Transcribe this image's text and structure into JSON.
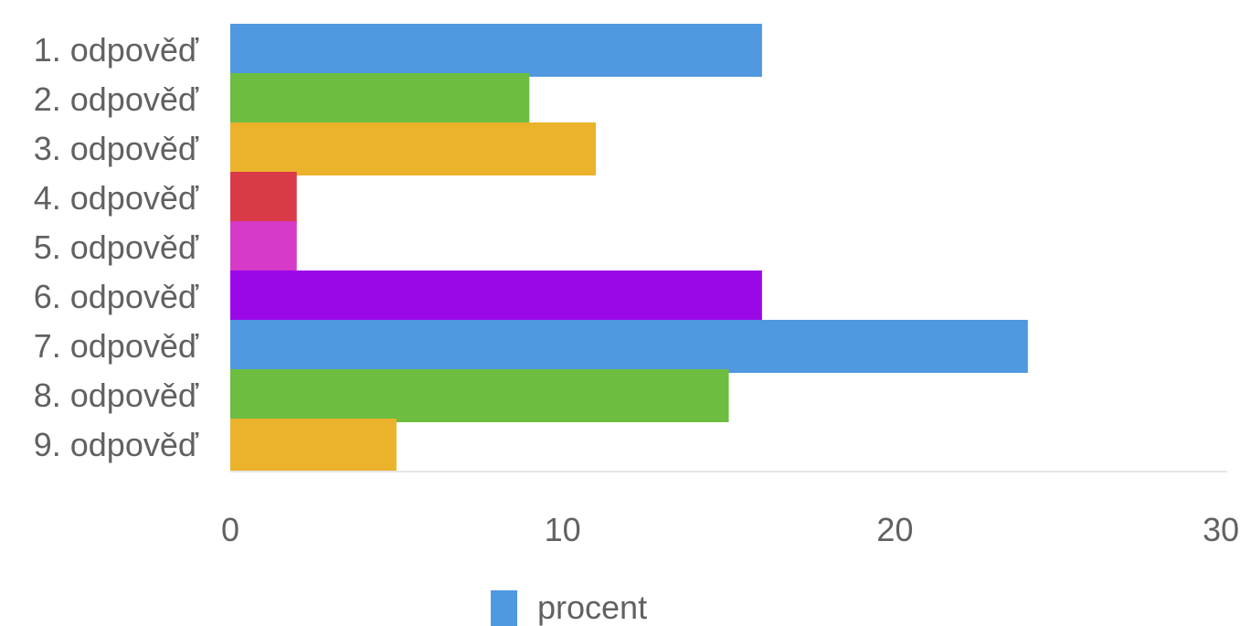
{
  "chart_data": {
    "type": "bar",
    "orientation": "horizontal",
    "categories": [
      "1. odpověď",
      "2. odpověď",
      "3. odpověď",
      "4. odpověď",
      "5. odpověď",
      "6. odpověď",
      "7. odpověď",
      "8. odpověď",
      "9. odpověď"
    ],
    "series": [
      {
        "name": "procent",
        "values": [
          16,
          9,
          11,
          2,
          2,
          16,
          24,
          15,
          5
        ]
      }
    ],
    "bar_colors": [
      "#5098e0",
      "#6cbd40",
      "#ebb22c",
      "#d83a48",
      "#d53ac8",
      "#9b08e8",
      "#5098e0",
      "#6cbd40",
      "#ebb22c"
    ],
    "xlim": [
      0,
      30
    ],
    "x_ticks": [
      "0",
      "10",
      "20",
      "30"
    ],
    "title": "",
    "xlabel": "",
    "ylabel": "",
    "legend_position": "bottom",
    "legend_color": "#5098e0",
    "grid": false
  }
}
